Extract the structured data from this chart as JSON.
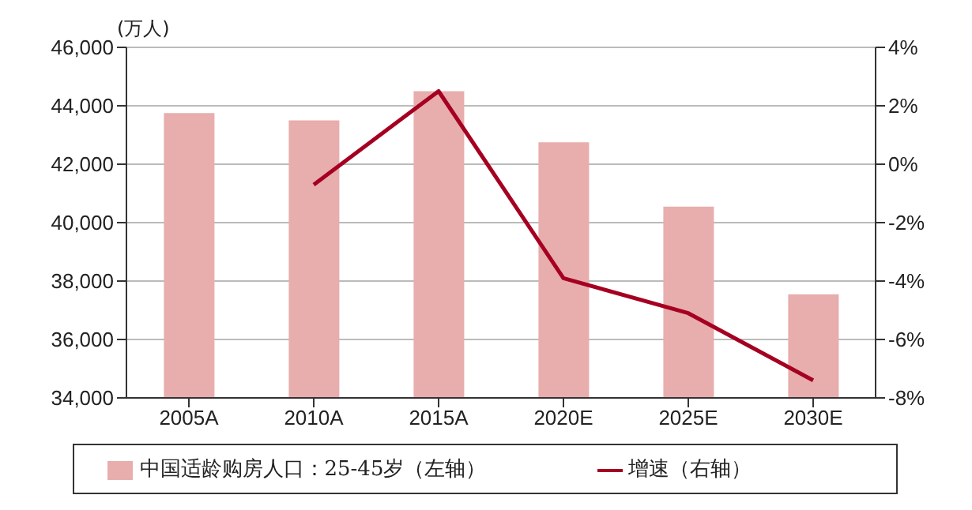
{
  "chart_data": {
    "type": "bar",
    "ylabel": "(万人)",
    "categories": [
      "2005A",
      "2010A",
      "2015A",
      "2020E",
      "2025E",
      "2030E"
    ],
    "series": [
      {
        "name": "中国适龄购房人口：25-45岁（左轴）",
        "color": "#e8adad",
        "values": [
          43750,
          43500,
          44500,
          42750,
          40550,
          37550
        ]
      },
      {
        "name": "增速（右轴）",
        "type": "line",
        "axis": "y2",
        "color": "#a50021",
        "values": [
          null,
          -0.7,
          2.5,
          -3.9,
          -5.1,
          -7.4
        ]
      }
    ],
    "ylim": [
      34000,
      46000
    ],
    "yticks": [
      {
        "value": 34000,
        "label": "34,000"
      },
      {
        "value": 36000,
        "label": "36,000"
      },
      {
        "value": 38000,
        "label": "38,000"
      },
      {
        "value": 40000,
        "label": "40,000"
      },
      {
        "value": 42000,
        "label": "42,000"
      },
      {
        "value": 44000,
        "label": "44,000"
      },
      {
        "value": 46000,
        "label": "46,000"
      }
    ],
    "y2lim": [
      -8,
      4
    ],
    "y2ticks": [
      {
        "value": -8,
        "label": "-8%"
      },
      {
        "value": -6,
        "label": "-6%"
      },
      {
        "value": -4,
        "label": "-4%"
      },
      {
        "value": -2,
        "label": "-2%"
      },
      {
        "value": 0,
        "label": "0%"
      },
      {
        "value": 2,
        "label": "2%"
      },
      {
        "value": 4,
        "label": "4%"
      }
    ],
    "grid": "y",
    "legend": "bottom",
    "marker": "none",
    "line_style": "solid"
  }
}
